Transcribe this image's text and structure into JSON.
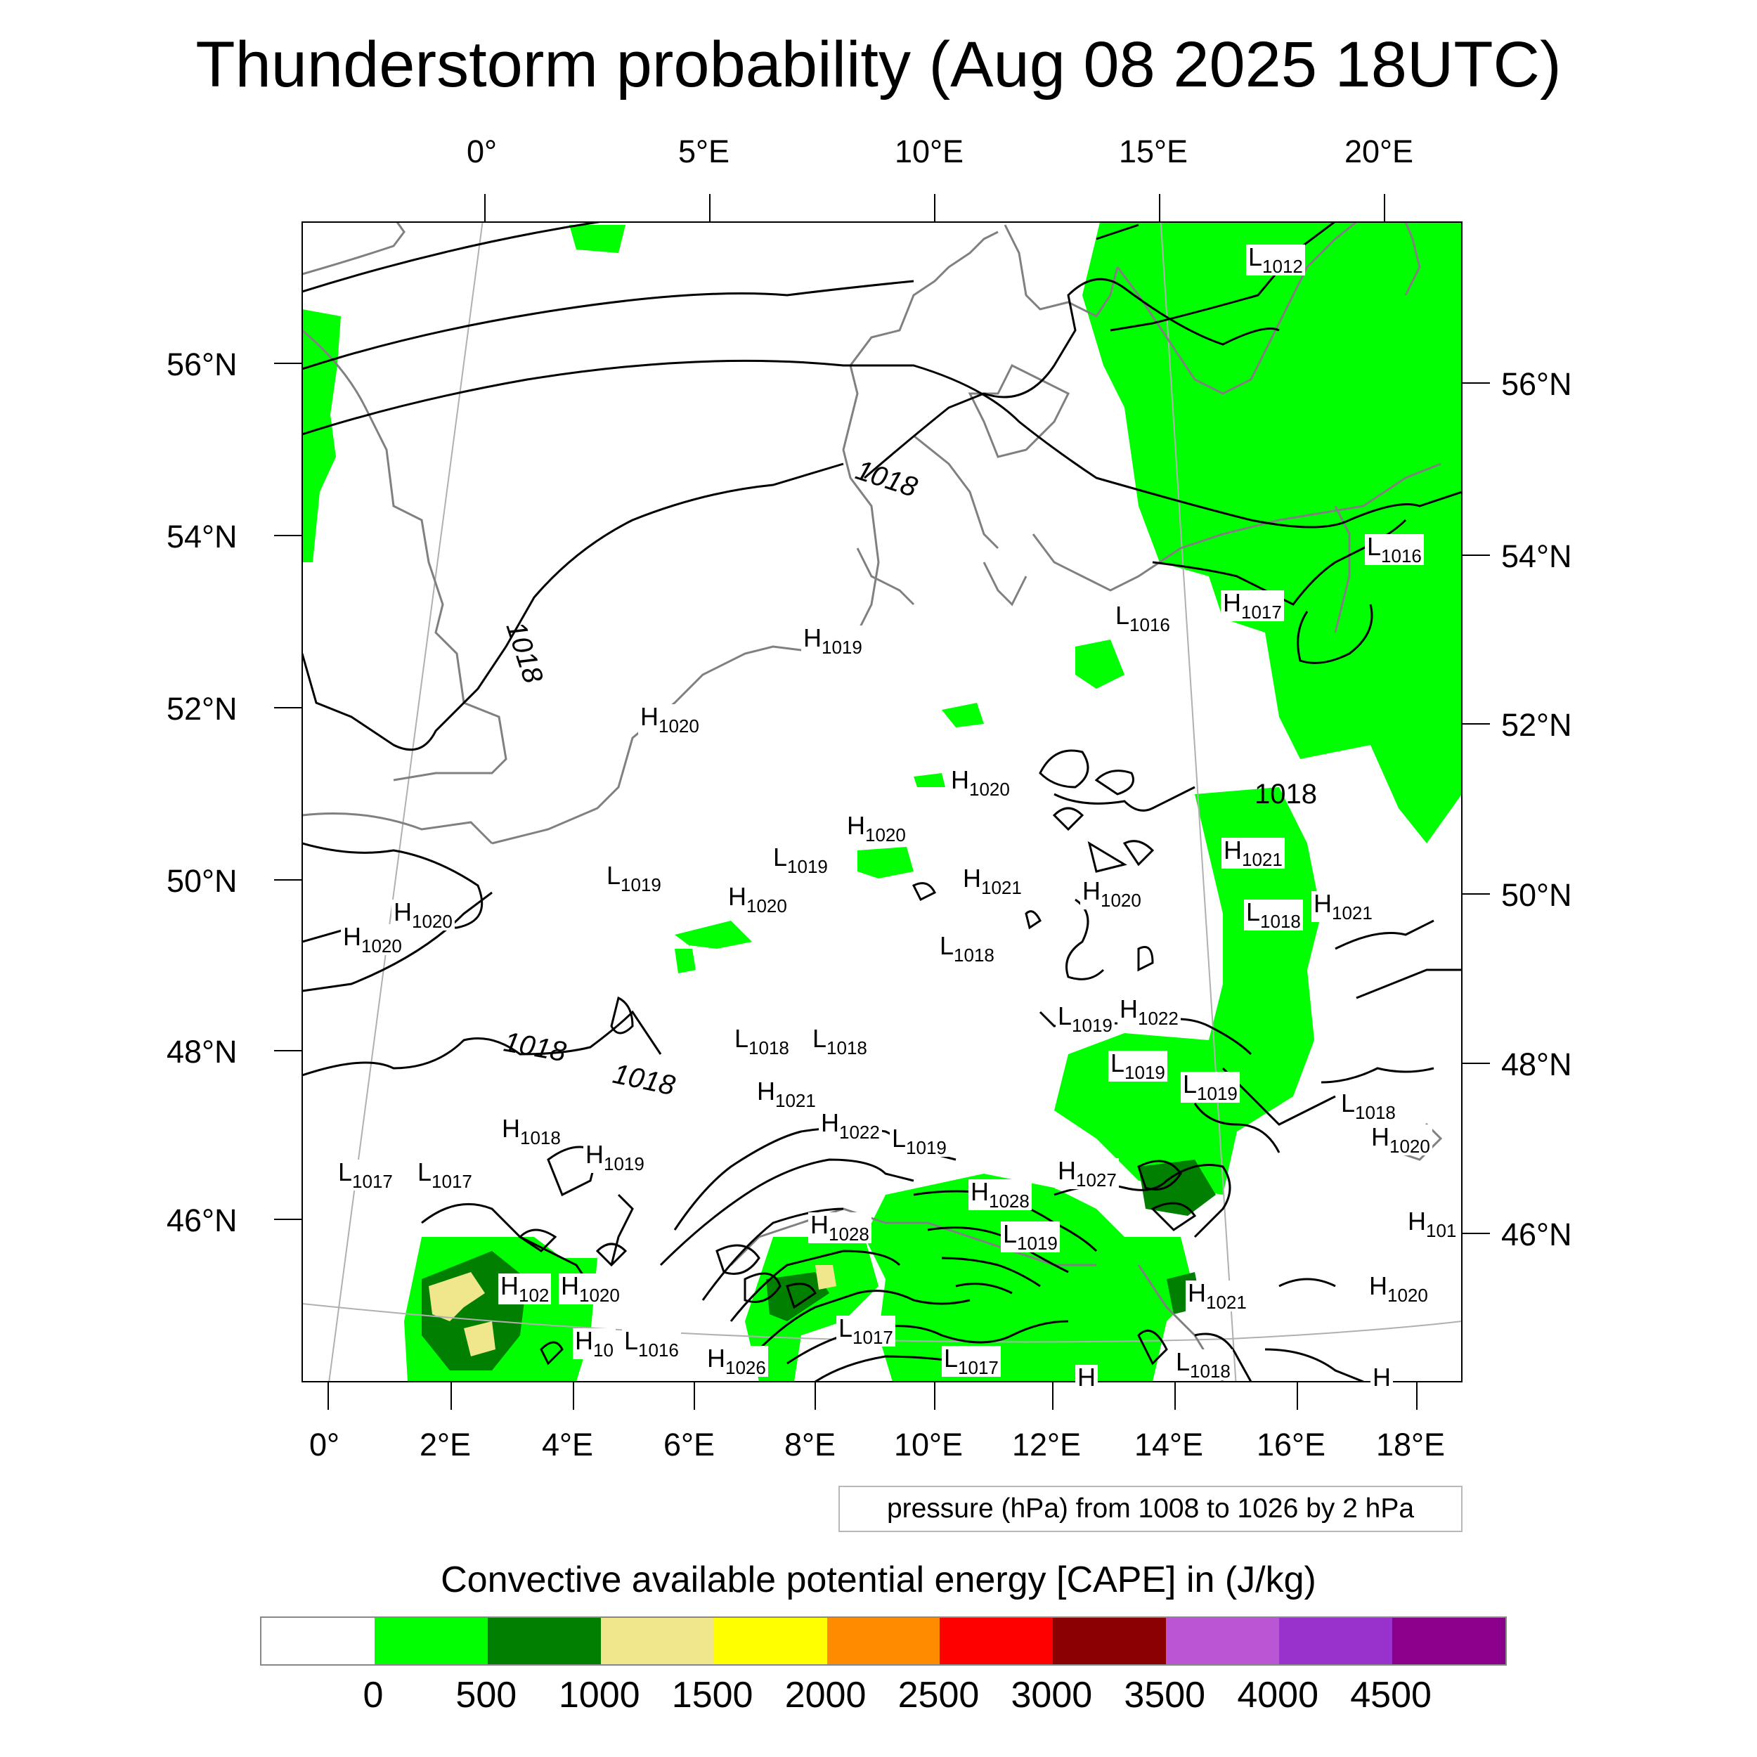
{
  "title": "Thunderstorm probability (Aug 08 2025 18UTC)",
  "info_box": "pressure (hPa) from 1008 to 1026 by 2 hPa",
  "colorbar": {
    "title": "Convective available potential energy [CAPE] in (J/kg)",
    "colors": [
      "#ffffff",
      "#00ff00",
      "#007f00",
      "#f0e68c",
      "#ffff00",
      "#ff8c00",
      "#ff0000",
      "#8b0000",
      "#ba55d3",
      "#9932cc",
      "#8b008b"
    ],
    "labels": [
      "0",
      "500",
      "1000",
      "1500",
      "2000",
      "2500",
      "3000",
      "3500",
      "4000",
      "4500"
    ]
  },
  "axes": {
    "top_lon_labels": [
      "0°",
      "5°E",
      "10°E",
      "15°E",
      "20°E"
    ],
    "bottom_lon_labels": [
      "0°",
      "2°E",
      "4°E",
      "6°E",
      "8°E",
      "10°E",
      "12°E",
      "14°E",
      "16°E",
      "18°E"
    ],
    "left_lat_labels": [
      "56°N",
      "54°N",
      "52°N",
      "50°N",
      "48°N",
      "46°N"
    ],
    "right_lat_labels": [
      "56°N",
      "54°N",
      "52°N",
      "50°N",
      "48°N",
      "46°N"
    ]
  },
  "isobar_labels": [
    "1018",
    "1018",
    "1018",
    "1018",
    "1018",
    "1018"
  ],
  "pressure_centers": [
    {
      "type": "L",
      "value": "1012"
    },
    {
      "type": "L",
      "value": "1016"
    },
    {
      "type": "L",
      "value": "1016"
    },
    {
      "type": "H",
      "value": "1017"
    },
    {
      "type": "H",
      "value": "1019"
    },
    {
      "type": "H",
      "value": "1020"
    },
    {
      "type": "H",
      "value": "1020"
    },
    {
      "type": "H",
      "value": "1020"
    },
    {
      "type": "L",
      "value": "1019"
    },
    {
      "type": "L",
      "value": "1019"
    },
    {
      "type": "H",
      "value": "1020"
    },
    {
      "type": "H",
      "value": "1020"
    },
    {
      "type": "H",
      "value": "1021"
    },
    {
      "type": "H",
      "value": "1021"
    },
    {
      "type": "L",
      "value": "1018"
    },
    {
      "type": "H",
      "value": "1021"
    },
    {
      "type": "H",
      "value": "1020"
    },
    {
      "type": "H",
      "value": "1020"
    },
    {
      "type": "L",
      "value": "1018"
    },
    {
      "type": "L",
      "value": "1019"
    },
    {
      "type": "H",
      "value": "1022"
    },
    {
      "type": "L",
      "value": "1018"
    },
    {
      "type": "L",
      "value": "1018"
    },
    {
      "type": "L",
      "value": "1019"
    },
    {
      "type": "L",
      "value": "1019"
    },
    {
      "type": "H",
      "value": "1021"
    },
    {
      "type": "H",
      "value": "1022"
    },
    {
      "type": "L",
      "value": "1019"
    },
    {
      "type": "L",
      "value": "1018"
    },
    {
      "type": "H",
      "value": "1018"
    },
    {
      "type": "H",
      "value": "1019"
    },
    {
      "type": "L",
      "value": "1017"
    },
    {
      "type": "L",
      "value": "1017"
    },
    {
      "type": "H",
      "value": "1020"
    },
    {
      "type": "H",
      "value": "1027"
    },
    {
      "type": "H",
      "value": "1028"
    },
    {
      "type": "L",
      "value": "1019"
    },
    {
      "type": "H",
      "value": "1028"
    },
    {
      "type": "H",
      "value": "102"
    },
    {
      "type": "H",
      "value": "1020"
    },
    {
      "type": "H",
      "value": "10"
    },
    {
      "type": "L",
      "value": "1016"
    },
    {
      "type": "H",
      "value": "1026"
    },
    {
      "type": "L",
      "value": "1017"
    },
    {
      "type": "L",
      "value": "1017"
    },
    {
      "type": "H",
      "value": "1021"
    },
    {
      "type": "L",
      "value": "1018"
    },
    {
      "type": "H",
      "value": "101"
    },
    {
      "type": "H",
      "value": "1020"
    },
    {
      "type": "H",
      "value": ""
    },
    {
      "type": "H",
      "value": ""
    }
  ]
}
